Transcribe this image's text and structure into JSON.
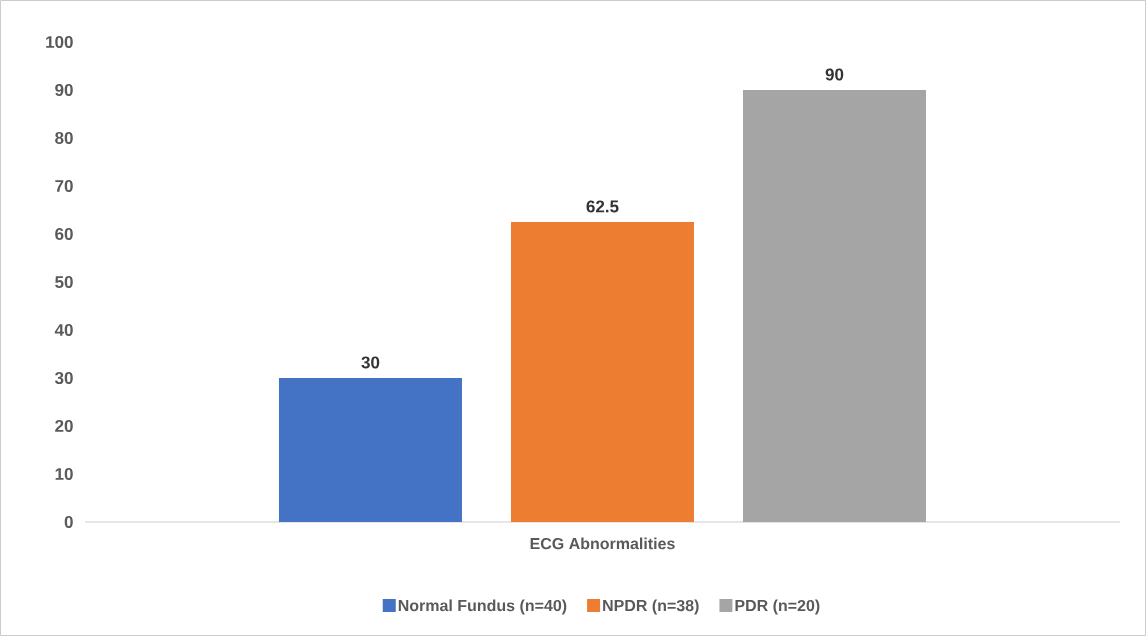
{
  "chart_data": {
    "type": "bar",
    "categories": [
      "ECG Abnormalities"
    ],
    "series": [
      {
        "name": "Normal Fundus (n=40)",
        "color": "#4472c4",
        "values": [
          30
        ]
      },
      {
        "name": "NPDR  (n=38)",
        "color": "#ed7d31",
        "values": [
          62.5
        ]
      },
      {
        "name": "PDR (n=20)",
        "color": "#a5a5a5",
        "values": [
          90
        ]
      }
    ],
    "ylim": [
      0,
      100
    ],
    "yticks": [
      0,
      10,
      20,
      30,
      40,
      50,
      60,
      70,
      80,
      90,
      100
    ],
    "data_labels": true,
    "grid": false,
    "legend": "bottom"
  }
}
